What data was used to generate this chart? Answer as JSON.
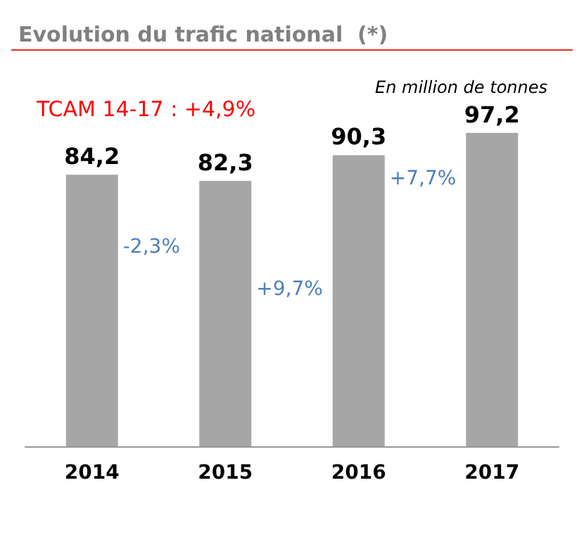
{
  "chart_data": {
    "type": "bar",
    "title": "Evolution du trafic national  (*)",
    "categories": [
      "2014",
      "2015",
      "2016",
      "2017"
    ],
    "values": [
      84.2,
      82.3,
      90.3,
      97.2
    ],
    "color": "#a6a6a6",
    "value_labels": [
      "84,2",
      "82,3",
      "90,3",
      "97,2"
    ],
    "annotations": [
      "TCAM 14-17 : +4,9%",
      "En million de tonnes",
      "-2,3%",
      "+9,7%",
      "+7,7%"
    ]
  }
}
